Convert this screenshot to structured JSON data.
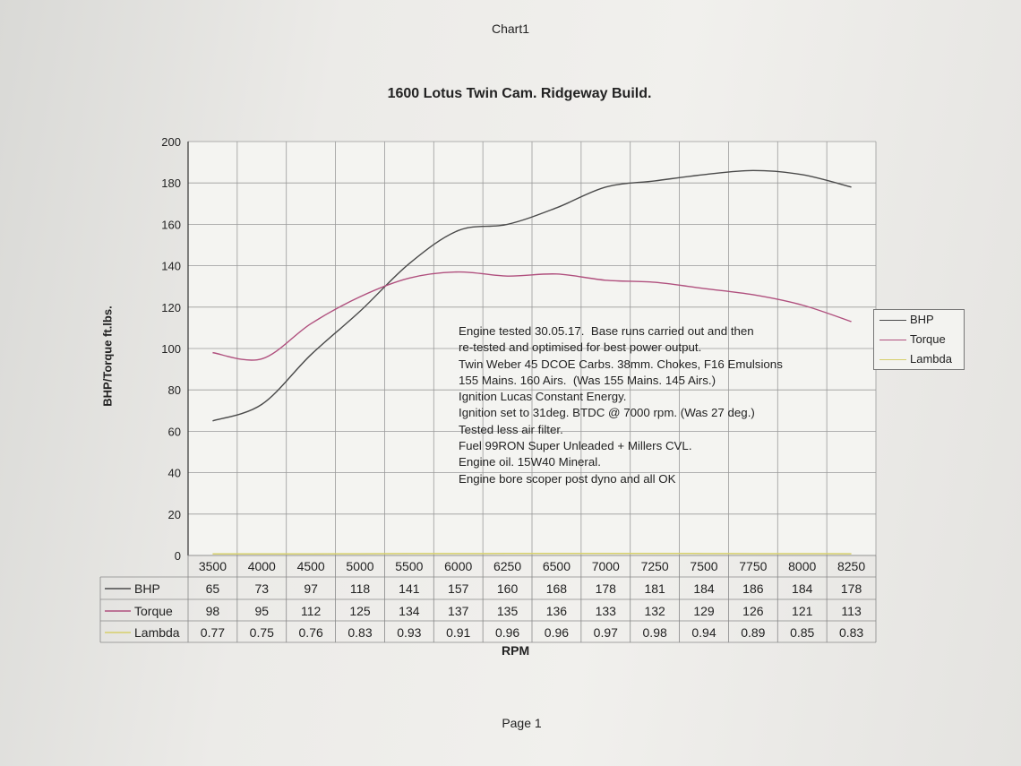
{
  "header": "Chart1",
  "footer": "Page 1",
  "colors": {
    "BHP": "#4a4a4a",
    "Torque": "#b0507e",
    "Lambda": "#d6cf6a",
    "grid": "#9a9a9a"
  },
  "chart_data": {
    "type": "line",
    "title": "1600 Lotus Twin Cam. Ridgeway Build.",
    "xlabel": "RPM",
    "ylabel": "BHP/Torque ft.lbs.",
    "ylim": [
      0,
      200
    ],
    "yticks": [
      "0",
      "20",
      "40",
      "60",
      "80",
      "100",
      "120",
      "140",
      "160",
      "180",
      "200"
    ],
    "grid": true,
    "legend": "right",
    "categories": [
      "3500",
      "4000",
      "4500",
      "5000",
      "5500",
      "6000",
      "6250",
      "6500",
      "7000",
      "7250",
      "7500",
      "7750",
      "8000",
      "8250"
    ],
    "series": [
      {
        "name": "BHP",
        "values": [
          65,
          73,
          97,
          118,
          141,
          157,
          160,
          168,
          178,
          181,
          184,
          186,
          184,
          178
        ]
      },
      {
        "name": "Torque",
        "values": [
          98,
          95,
          112,
          125,
          134,
          137,
          135,
          136,
          133,
          132,
          129,
          126,
          121,
          113
        ]
      },
      {
        "name": "Lambda",
        "values": [
          0.77,
          0.75,
          0.76,
          0.83,
          0.93,
          0.91,
          0.96,
          0.96,
          0.97,
          0.98,
          0.94,
          0.89,
          0.85,
          0.83
        ]
      }
    ],
    "annotation": [
      "Engine tested 30.05.17.  Base runs carried out and then",
      "re-tested and optimised for best power output.",
      "Twin Weber 45 DCOE Carbs. 38mm. Chokes, F16 Emulsions",
      "155 Mains. 160 Airs.  (Was 155 Mains. 145 Airs.)",
      "Ignition Lucas Constant Energy.",
      "Ignition set to 31deg. BTDC @ 7000 rpm. (Was 27 deg.)",
      "Tested less air filter.",
      "Fuel 99RON Super Unleaded + Millers CVL.",
      "Engine oil. 15W40 Mineral.",
      "Engine bore scoper post dyno and all OK"
    ]
  }
}
